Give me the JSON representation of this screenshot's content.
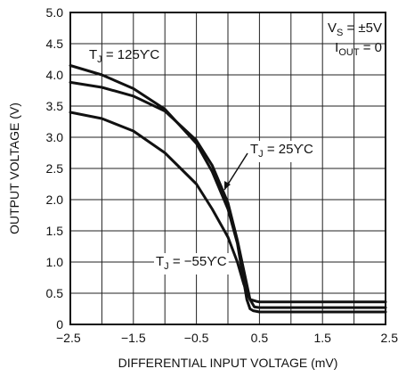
{
  "chart_data": {
    "type": "line",
    "title": "",
    "xlabel": "DIFFERENTIAL INPUT VOLTAGE (mV)",
    "ylabel": "OUTPUT VOLTAGE (V)",
    "xlim": [
      -2.5,
      2.5
    ],
    "ylim": [
      0,
      5.0
    ],
    "grid": true,
    "x_ticks": [
      "−2.5",
      "−1.5",
      "−0.5",
      "0.5",
      "1.5",
      "2.5"
    ],
    "y_ticks": [
      "0",
      "0.5",
      "1.0",
      "1.5",
      "2.0",
      "2.5",
      "3.0",
      "3.5",
      "4.0",
      "4.5",
      "5.0"
    ],
    "conditions": {
      "vs": {
        "main": "V",
        "sub": "S",
        "rest": " = ±5V"
      },
      "iout": {
        "main": "I",
        "sub": "OUT",
        "rest": " = 0"
      }
    },
    "series": [
      {
        "label": {
          "main": "T",
          "sub": "J",
          "rest": " = 125ϒC"
        },
        "x": [
          -2.5,
          -2.0,
          -1.5,
          -1.0,
          -0.5,
          -0.25,
          0.0,
          0.15,
          0.3,
          0.35,
          0.4,
          0.5,
          1.0,
          1.5,
          2.0,
          2.5
        ],
        "y": [
          4.15,
          4.0,
          3.78,
          3.45,
          2.9,
          2.45,
          1.85,
          1.3,
          0.4,
          0.25,
          0.22,
          0.2,
          0.2,
          0.2,
          0.2,
          0.2
        ]
      },
      {
        "label": {
          "main": "T",
          "sub": "J",
          "rest": " = 25ϒC"
        },
        "x": [
          -2.5,
          -2.0,
          -1.5,
          -1.0,
          -0.5,
          -0.25,
          0.0,
          0.15,
          0.35,
          0.42,
          0.5,
          1.0,
          1.5,
          2.0,
          2.5
        ],
        "y": [
          3.88,
          3.8,
          3.66,
          3.42,
          2.95,
          2.55,
          1.95,
          1.35,
          0.4,
          0.28,
          0.27,
          0.27,
          0.27,
          0.27,
          0.27
        ]
      },
      {
        "label": {
          "main": "T",
          "sub": "J",
          "rest": " = −55ϒC"
        },
        "x": [
          -2.5,
          -2.0,
          -1.5,
          -1.0,
          -0.5,
          -0.25,
          0.0,
          0.15,
          0.25,
          0.35,
          0.45,
          0.5,
          1.0,
          1.5,
          2.0,
          2.5
        ],
        "y": [
          3.4,
          3.3,
          3.1,
          2.75,
          2.25,
          1.85,
          1.4,
          1.0,
          0.65,
          0.4,
          0.37,
          0.36,
          0.36,
          0.36,
          0.36,
          0.36
        ]
      }
    ]
  }
}
